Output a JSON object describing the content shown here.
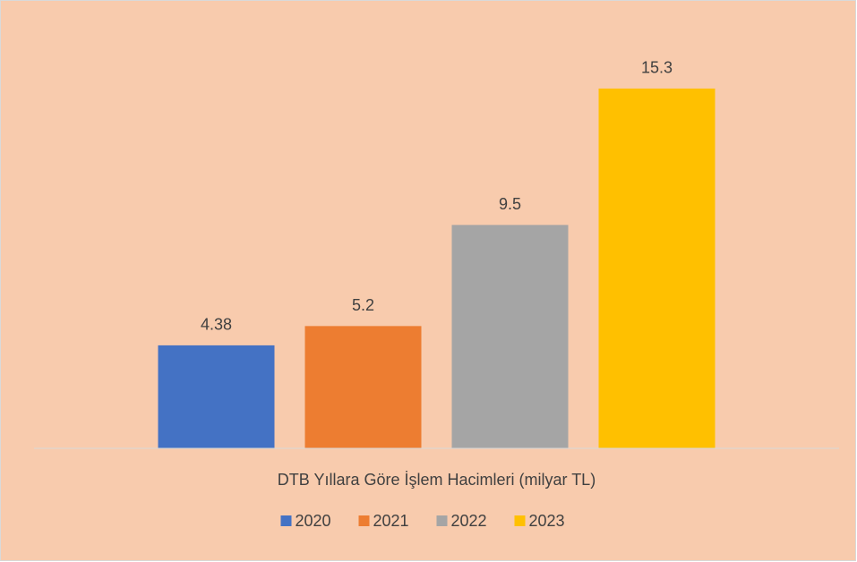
{
  "chart_data": {
    "type": "bar",
    "categories": [
      "DTB Yıllara Göre İşlem Hacimleri (milyar TL)"
    ],
    "series": [
      {
        "name": "2020",
        "color": "#4472C4",
        "values": [
          4.38
        ]
      },
      {
        "name": "2021",
        "color": "#ED7D31",
        "values": [
          5.2
        ]
      },
      {
        "name": "2022",
        "color": "#A5A5A5",
        "values": [
          9.5
        ]
      },
      {
        "name": "2023",
        "color": "#FFC000",
        "values": [
          15.3
        ]
      }
    ],
    "ylim": [
      0,
      18
    ],
    "legend": "bottom"
  }
}
